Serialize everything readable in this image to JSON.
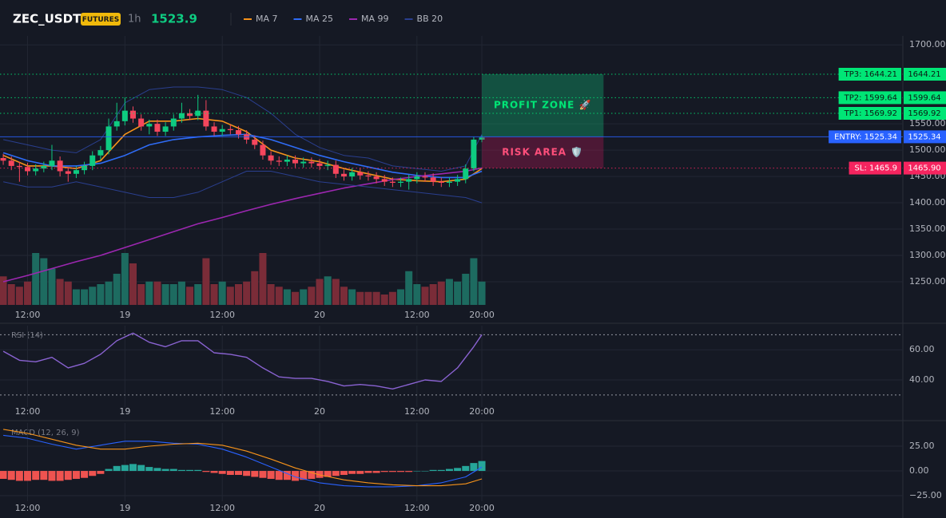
{
  "chart_data": [
    {
      "type": "candlestick",
      "title": "ZEC_USDT",
      "badge": "FUTURES",
      "interval": "1h",
      "last_price": 1523.9,
      "up_color": "#0ecb81",
      "down_color": "#f6465d",
      "volume_up_color": "#1d6b60",
      "volume_down_color": "#7a2c38",
      "xlim": [
        -0.4,
        110.9
      ],
      "xticks": [
        {
          "value": 3,
          "label": "12:00"
        },
        {
          "value": 15,
          "label": "19"
        },
        {
          "value": 27,
          "label": "12:00"
        },
        {
          "value": 39,
          "label": "20"
        },
        {
          "value": 51,
          "label": "12:00"
        },
        {
          "value": 59,
          "label": "20:00"
        }
      ],
      "ylim": [
        1206,
        1717
      ],
      "yticks": [
        {
          "value": 1700,
          "label": "1700.00"
        },
        {
          "value": 1550,
          "label": "1550.00"
        },
        {
          "value": 1500,
          "label": "1500.00"
        },
        {
          "value": 1450,
          "label": "1450.00"
        },
        {
          "value": 1400,
          "label": "1400.00"
        },
        {
          "value": 1350,
          "label": "1350.00"
        },
        {
          "value": 1300,
          "label": "1300.00"
        },
        {
          "value": 1250,
          "label": "1250.00"
        }
      ],
      "x": [
        0,
        1,
        2,
        3,
        4,
        5,
        6,
        7,
        8,
        9,
        10,
        11,
        12,
        13,
        14,
        15,
        16,
        17,
        18,
        19,
        20,
        21,
        22,
        23,
        24,
        25,
        26,
        27,
        28,
        29,
        30,
        31,
        32,
        33,
        34,
        35,
        36,
        37,
        38,
        39,
        40,
        41,
        42,
        43,
        44,
        45,
        46,
        47,
        48,
        49,
        50,
        51,
        52,
        53,
        54,
        55,
        56,
        57,
        58,
        59
      ],
      "open": [
        1485,
        1480,
        1470,
        1468,
        1460,
        1465,
        1470,
        1480,
        1460,
        1455,
        1462,
        1470,
        1490,
        1500,
        1545,
        1555,
        1575,
        1560,
        1545,
        1550,
        1535,
        1545,
        1560,
        1570,
        1565,
        1575,
        1545,
        1535,
        1540,
        1538,
        1530,
        1520,
        1510,
        1490,
        1480,
        1478,
        1482,
        1475,
        1478,
        1475,
        1470,
        1472,
        1455,
        1450,
        1458,
        1452,
        1450,
        1445,
        1440,
        1438,
        1440,
        1445,
        1450,
        1448,
        1440,
        1438,
        1440,
        1445,
        1465,
        1520
      ],
      "high": [
        1493,
        1488,
        1478,
        1476,
        1473,
        1478,
        1510,
        1488,
        1468,
        1470,
        1478,
        1498,
        1508,
        1560,
        1590,
        1600,
        1583,
        1568,
        1558,
        1558,
        1553,
        1568,
        1590,
        1578,
        1605,
        1595,
        1553,
        1548,
        1548,
        1546,
        1538,
        1528,
        1518,
        1498,
        1488,
        1490,
        1490,
        1486,
        1486,
        1483,
        1480,
        1480,
        1463,
        1466,
        1466,
        1460,
        1458,
        1453,
        1448,
        1448,
        1453,
        1458,
        1458,
        1456,
        1448,
        1448,
        1453,
        1473,
        1525,
        1528
      ],
      "low": [
        1472,
        1462,
        1440,
        1452,
        1452,
        1458,
        1462,
        1450,
        1440,
        1447,
        1454,
        1462,
        1482,
        1492,
        1537,
        1547,
        1552,
        1537,
        1530,
        1527,
        1527,
        1537,
        1552,
        1557,
        1557,
        1537,
        1527,
        1527,
        1530,
        1522,
        1512,
        1502,
        1482,
        1472,
        1470,
        1470,
        1467,
        1467,
        1467,
        1462,
        1462,
        1447,
        1442,
        1442,
        1444,
        1442,
        1437,
        1432,
        1430,
        1430,
        1425,
        1437,
        1440,
        1432,
        1430,
        1430,
        1432,
        1437,
        1460,
        1515
      ],
      "close": [
        1480,
        1470,
        1468,
        1460,
        1465,
        1470,
        1480,
        1460,
        1455,
        1462,
        1470,
        1490,
        1500,
        1545,
        1555,
        1575,
        1560,
        1545,
        1550,
        1535,
        1545,
        1560,
        1570,
        1565,
        1575,
        1545,
        1535,
        1540,
        1538,
        1530,
        1520,
        1510,
        1490,
        1480,
        1478,
        1482,
        1475,
        1478,
        1475,
        1470,
        1472,
        1455,
        1450,
        1458,
        1452,
        1450,
        1445,
        1440,
        1438,
        1440,
        1445,
        1450,
        1448,
        1440,
        1438,
        1440,
        1445,
        1465,
        1520,
        1524
      ],
      "volume": [
        55,
        40,
        35,
        45,
        100,
        90,
        70,
        50,
        45,
        30,
        30,
        35,
        40,
        45,
        60,
        100,
        80,
        40,
        45,
        45,
        40,
        40,
        45,
        35,
        40,
        90,
        40,
        45,
        35,
        40,
        45,
        65,
        100,
        40,
        35,
        30,
        25,
        30,
        35,
        50,
        55,
        50,
        35,
        30,
        25,
        25,
        25,
        20,
        25,
        30,
        65,
        40,
        35,
        40,
        45,
        50,
        45,
        60,
        90,
        45
      ],
      "series": [
        {
          "name": "MA 7",
          "color": "#f7931a",
          "x": [
            0,
            3,
            6,
            9,
            12,
            15,
            18,
            21,
            24,
            27,
            30,
            33,
            36,
            39,
            42,
            45,
            48,
            51,
            54,
            57,
            59
          ],
          "values": [
            1490,
            1470,
            1470,
            1465,
            1480,
            1530,
            1555,
            1555,
            1560,
            1555,
            1535,
            1500,
            1485,
            1478,
            1465,
            1455,
            1445,
            1442,
            1440,
            1445,
            1465
          ]
        },
        {
          "name": "MA 25",
          "color": "#2f6cf6",
          "x": [
            0,
            3,
            6,
            9,
            12,
            15,
            18,
            21,
            24,
            27,
            30,
            33,
            36,
            39,
            42,
            45,
            48,
            51,
            54,
            57,
            59
          ],
          "values": [
            1495,
            1480,
            1470,
            1470,
            1475,
            1490,
            1510,
            1520,
            1525,
            1528,
            1530,
            1520,
            1505,
            1490,
            1478,
            1468,
            1458,
            1452,
            1448,
            1448,
            1460
          ]
        },
        {
          "name": "MA 99",
          "color": "#9c27b0",
          "x": [
            0,
            3,
            6,
            9,
            12,
            15,
            18,
            21,
            24,
            27,
            30,
            33,
            36,
            39,
            42,
            45,
            48,
            51,
            54,
            57,
            59
          ],
          "values": [
            1250,
            1262,
            1275,
            1288,
            1300,
            1315,
            1330,
            1345,
            1360,
            1372,
            1385,
            1397,
            1408,
            1418,
            1428,
            1436,
            1444,
            1450,
            1455,
            1460,
            1466
          ]
        },
        {
          "name": "BB 20",
          "color": "#2a3f8f",
          "x": [
            0,
            3,
            6,
            9,
            12,
            15,
            18,
            21,
            24,
            27,
            30,
            33,
            36,
            39,
            42,
            45,
            48,
            51,
            54,
            57,
            59
          ],
          "values": [
            1520,
            1510,
            1500,
            1495,
            1520,
            1590,
            1615,
            1620,
            1620,
            1615,
            1600,
            1570,
            1530,
            1505,
            1490,
            1485,
            1470,
            1465,
            1460,
            1470,
            1530
          ],
          "lower": [
            1440,
            1430,
            1430,
            1440,
            1430,
            1420,
            1410,
            1410,
            1420,
            1440,
            1460,
            1460,
            1450,
            1440,
            1435,
            1430,
            1425,
            1420,
            1415,
            1410,
            1400
          ]
        }
      ],
      "levels": [
        {
          "value": 1644.21,
          "label": "TP3: 1644.21",
          "axis_label": "1644.21",
          "color": "#00e676",
          "text_color": "#0b1a14",
          "style": "dotted"
        },
        {
          "value": 1599.64,
          "label": "TP2: 1599.64",
          "axis_label": "1599.64",
          "color": "#00e676",
          "text_color": "#0b1a14",
          "style": "dotted"
        },
        {
          "value": 1569.92,
          "label": "TP1: 1569.92",
          "axis_label": "1569.92",
          "color": "#00e676",
          "text_color": "#0b1a14",
          "style": "dotted"
        },
        {
          "value": 1525.34,
          "label": "ENTRY: 1525.34",
          "axis_label": "1525.34",
          "color": "#2962ff",
          "text_color": "#ffffff",
          "style": "solid"
        },
        {
          "value": 1465.9,
          "label": "SL: 1465.9",
          "axis_label": "1465.90",
          "color": "#f5245f",
          "text_color": "#ffffff",
          "style": "dotted"
        }
      ],
      "zones": [
        {
          "label": "PROFIT ZONE 🚀",
          "xlim": [
            59,
            74
          ],
          "ylim": [
            1525.34,
            1644.21
          ],
          "color": "#0ecb81",
          "text_color": "#00e676"
        },
        {
          "label": "RISK AREA 🛡️",
          "xlim": [
            59,
            74
          ],
          "ylim": [
            1465.9,
            1525.34
          ],
          "color": "#c2185b",
          "text_color": "#ff4f7b"
        }
      ]
    },
    {
      "type": "line",
      "title": "RSI (14)",
      "xlim": [
        -0.4,
        110.9
      ],
      "xticks": [
        {
          "value": 3,
          "label": "12:00"
        },
        {
          "value": 15,
          "label": "19"
        },
        {
          "value": 27,
          "label": "12:00"
        },
        {
          "value": 39,
          "label": "20"
        },
        {
          "value": 51,
          "label": "12:00"
        },
        {
          "value": 59,
          "label": "20:00"
        }
      ],
      "ylim": [
        22,
        76
      ],
      "yticks": [
        {
          "value": 60,
          "label": "60.00"
        },
        {
          "value": 40,
          "label": "40.00"
        }
      ],
      "bands": [
        70,
        30
      ],
      "series": [
        {
          "color": "#8a63d2",
          "x": [
            0,
            2,
            4,
            6,
            8,
            10,
            12,
            14,
            16,
            18,
            20,
            22,
            24,
            26,
            28,
            30,
            32,
            34,
            36,
            38,
            40,
            42,
            44,
            46,
            48,
            50,
            52,
            54,
            56,
            58,
            59
          ],
          "values": [
            59,
            53,
            52,
            55,
            48,
            51,
            57,
            66,
            71,
            65,
            62,
            66,
            66,
            58,
            57,
            55,
            48,
            42,
            41,
            41,
            39,
            36,
            37,
            36,
            34,
            37,
            40,
            39,
            48,
            62,
            70
          ]
        }
      ]
    },
    {
      "type": "macd",
      "title": "MACD (12, 26, 9)",
      "xlim": [
        -0.4,
        110.9
      ],
      "xticks": [
        {
          "value": 3,
          "label": "12:00"
        },
        {
          "value": 15,
          "label": "19"
        },
        {
          "value": 27,
          "label": "12:00"
        },
        {
          "value": 39,
          "label": "20"
        },
        {
          "value": 51,
          "label": "12:00"
        },
        {
          "value": 59,
          "label": "20:00"
        }
      ],
      "ylim": [
        -30.6,
        48.4
      ],
      "yticks": [
        {
          "value": 25,
          "label": "25.00"
        },
        {
          "value": 0,
          "label": "0.00"
        },
        {
          "value": -25,
          "label": "−25.00"
        }
      ],
      "up_color": "#26a69a",
      "down_color": "#ef5350",
      "x": [
        0,
        1,
        2,
        3,
        4,
        5,
        6,
        7,
        8,
        9,
        10,
        11,
        12,
        13,
        14,
        15,
        16,
        17,
        18,
        19,
        20,
        21,
        22,
        23,
        24,
        25,
        26,
        27,
        28,
        29,
        30,
        31,
        32,
        33,
        34,
        35,
        36,
        37,
        38,
        39,
        40,
        41,
        42,
        43,
        44,
        45,
        46,
        47,
        48,
        49,
        50,
        51,
        52,
        53,
        54,
        55,
        56,
        57,
        58,
        59
      ],
      "histogram": [
        -8,
        -9,
        -10,
        -10,
        -9,
        -9,
        -10,
        -10,
        -9,
        -8,
        -7,
        -5,
        -3,
        2,
        5,
        6,
        7,
        6,
        4,
        3,
        2,
        2,
        1,
        1,
        1,
        -1,
        -2,
        -3,
        -4,
        -4,
        -5,
        -6,
        -7,
        -8,
        -9,
        -9,
        -10,
        -9,
        -8,
        -7,
        -6,
        -5,
        -4,
        -3,
        -3,
        -2,
        -2,
        -1,
        -1,
        -1,
        -1,
        0,
        0,
        1,
        1,
        2,
        3,
        5,
        8,
        10
      ],
      "series": [
        {
          "color": "#2962ff",
          "x": [
            0,
            3,
            6,
            9,
            12,
            15,
            18,
            21,
            24,
            27,
            30,
            33,
            36,
            39,
            42,
            45,
            48,
            51,
            54,
            57,
            59
          ],
          "values": [
            36,
            33,
            27,
            22,
            26,
            30,
            30,
            28,
            27,
            22,
            14,
            4,
            -6,
            -12,
            -15,
            -16,
            -16,
            -15,
            -12,
            -6,
            4
          ]
        },
        {
          "color": "#f7931a",
          "x": [
            0,
            3,
            6,
            9,
            12,
            15,
            18,
            21,
            24,
            27,
            30,
            33,
            36,
            39,
            42,
            45,
            48,
            51,
            54,
            57,
            59
          ],
          "values": [
            42,
            38,
            32,
            26,
            22,
            22,
            25,
            27,
            28,
            26,
            20,
            12,
            3,
            -4,
            -9,
            -12,
            -14,
            -15,
            -15,
            -13,
            -8
          ]
        }
      ]
    }
  ]
}
